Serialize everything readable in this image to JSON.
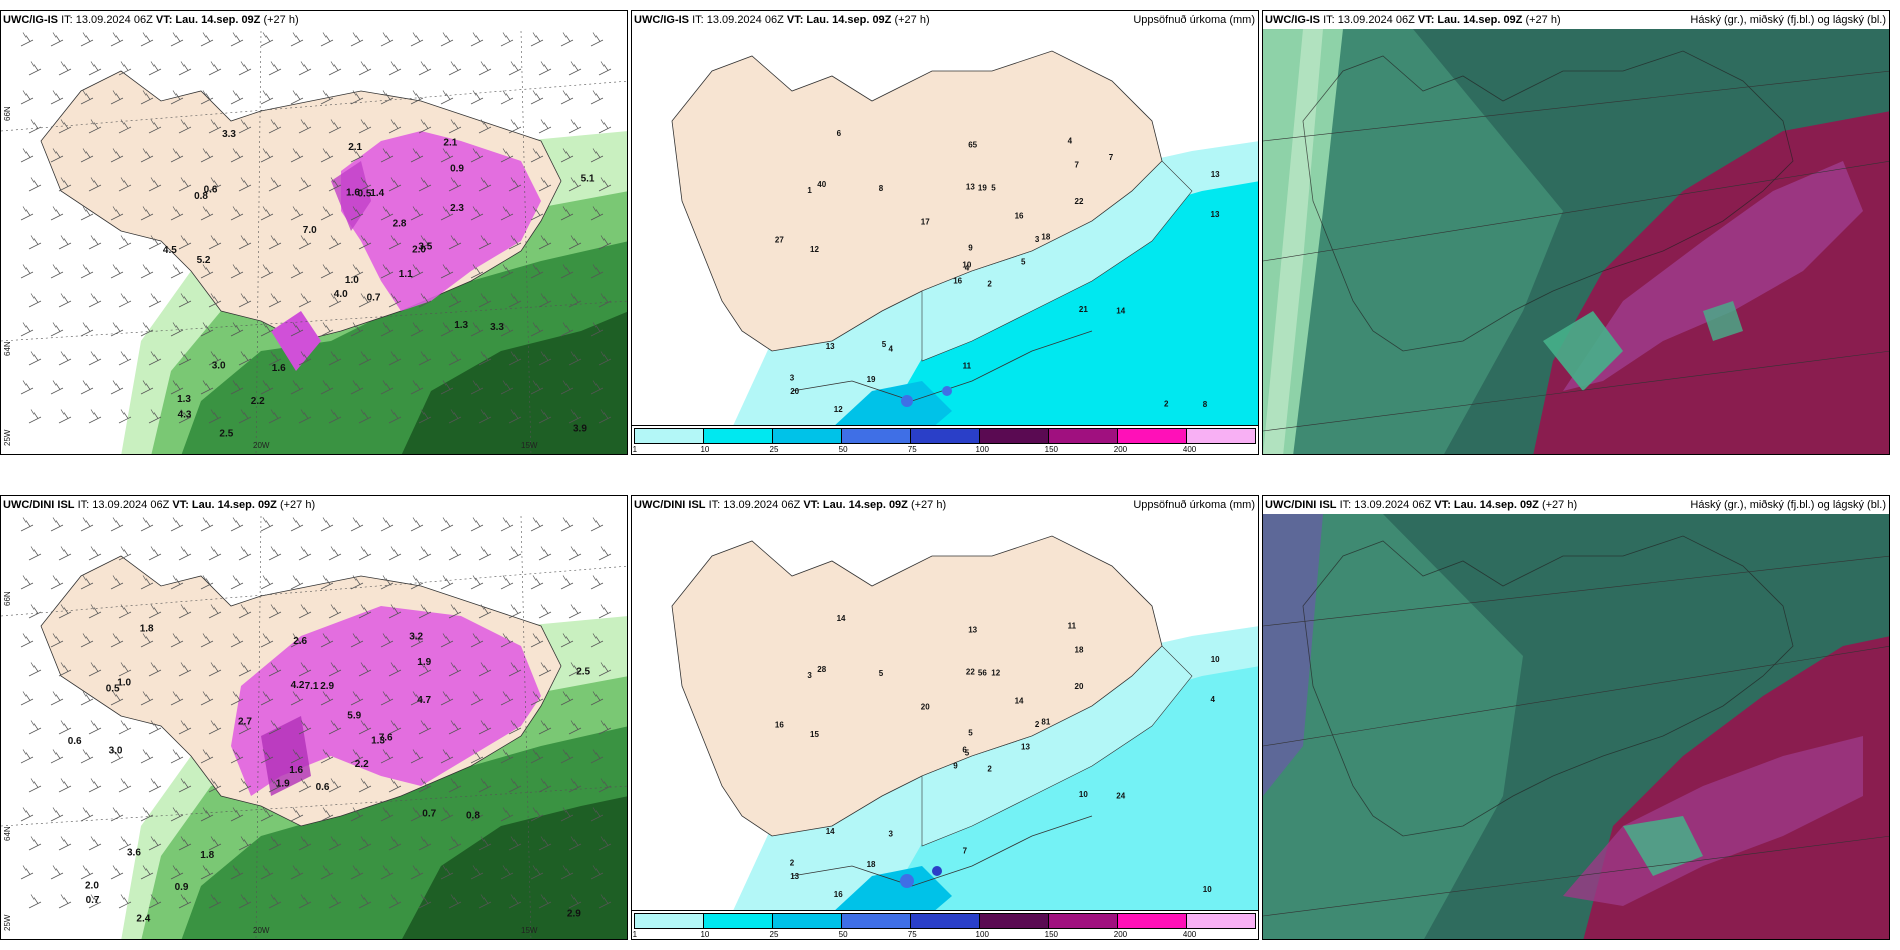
{
  "panels": [
    {
      "id": "p11",
      "model": "UWC/IG-IS",
      "it": "IT: 13.09.2024 06Z",
      "vt": "VT: Lau. 14.sep. 09Z",
      "lead": "(+27 h)",
      "right_title": "",
      "lat_labels": [
        "66N",
        "64N",
        "25W"
      ],
      "lon_labels": [
        "20W",
        "15W"
      ],
      "values": [
        "0.7",
        "0.8",
        "1.0",
        "1.3",
        "2.0",
        "1.6",
        "2.1",
        "1.4",
        "0.9",
        "1.1",
        "3.3",
        "3.9",
        "5.2",
        "5.1",
        "4.0",
        "2.3",
        "2.5",
        "1.6",
        "2.8",
        "3.0",
        "7.0",
        "4.3",
        "2.2",
        "0.5",
        "3.5",
        "3.3",
        "0.6",
        "2.1",
        "4.5",
        "1.3"
      ]
    },
    {
      "id": "p12",
      "model": "UWC/IG-IS",
      "it": "IT: 13.09.2024 06Z",
      "vt": "VT: Lau. 14.sep. 09Z",
      "lead": "(+27 h)",
      "right_title": "Uppsöfnuð úrkoma (mm)",
      "values": [
        "2",
        "1",
        "4",
        "3",
        "3",
        "4",
        "4",
        "5",
        "7",
        "5",
        "6",
        "8",
        "12",
        "13",
        "16",
        "22",
        "12",
        "13",
        "16",
        "13",
        "17",
        "20",
        "19",
        "19",
        "18",
        "14",
        "40",
        "65",
        "27",
        "21",
        "13",
        "10",
        "11",
        "9",
        "8",
        "7",
        "5",
        "2"
      ]
    },
    {
      "id": "p13",
      "model": "UWC/IG-IS",
      "it": "IT: 13.09.2024 06Z",
      "vt": "VT: Lau. 14.sep. 09Z",
      "lead": "(+27 h)",
      "right_title": "Háský (gr.), miðský (fj.bl.) og lágský (bl.)"
    },
    {
      "id": "p21",
      "model": "UWC/DINI ISL",
      "it": "IT: 13.09.2024 06Z",
      "vt": "VT: Lau. 14.sep. 09Z",
      "lead": "(+27 h)",
      "right_title": "",
      "lat_labels": [
        "66N",
        "64N",
        "25W"
      ],
      "lon_labels": [
        "20W",
        "15W"
      ],
      "values": [
        "0.6",
        "0.5",
        "1.6",
        "2.0",
        "1.3",
        "1.8",
        "3.2",
        "2.9",
        "1.9",
        "2.2",
        "1.8",
        "2.9",
        "3.0",
        "2.5",
        "1.9",
        "4.7",
        "2.4",
        "4.2",
        "5.9",
        "3.6",
        "2.7",
        "0.7",
        "0.9",
        "7.1",
        "7.6",
        "0.8",
        "1.0",
        "2.6",
        "0.6",
        "0.7"
      ]
    },
    {
      "id": "p22",
      "model": "UWC/DINI ISL",
      "it": "IT: 13.09.2024 06Z",
      "vt": "VT: Lau. 14.sep. 09Z",
      "lead": "(+27 h)",
      "right_title": "Uppsöfnuð úrkoma (mm)",
      "values": [
        "2",
        "3",
        "5",
        "2",
        "2",
        "3",
        "11",
        "12",
        "18",
        "13",
        "14",
        "10",
        "15",
        "10",
        "9",
        "20",
        "16",
        "22",
        "14",
        "14",
        "20",
        "13",
        "18",
        "56",
        "81",
        "24",
        "28",
        "13",
        "16",
        "10",
        "4",
        "6",
        "7",
        "5",
        "5"
      ]
    },
    {
      "id": "p23",
      "model": "UWC/DINI ISL",
      "it": "IT: 13.09.2024 06Z",
      "vt": "VT: Lau. 14.sep. 09Z",
      "lead": "(+27 h)",
      "right_title": "Háský (gr.), miðský (fj.bl.) og lágský (bl.)"
    }
  ],
  "legend": {
    "ticks": [
      "1",
      "10",
      "25",
      "50",
      "75",
      "100",
      "150",
      "200",
      "400"
    ],
    "colors": [
      "#b3f7f7",
      "#00e8f0",
      "#00c2e8",
      "#3f6fe6",
      "#2a3fc8",
      "#5a0a52",
      "#a0107f",
      "#ff10b8",
      "#f8b0f4"
    ]
  },
  "palette": {
    "land": "#f7e4d2",
    "wind_green_light": "#c9f0c0",
    "wind_green_mid": "#7ac874",
    "wind_green_dark": "#1e5f25",
    "precip_magenta": "#e060e0",
    "cloud_teal": "#2f6c5e",
    "cloud_green": "#46b08a",
    "cloud_maroon": "#8a1d4f",
    "cloud_purple": "#9c3a86"
  }
}
